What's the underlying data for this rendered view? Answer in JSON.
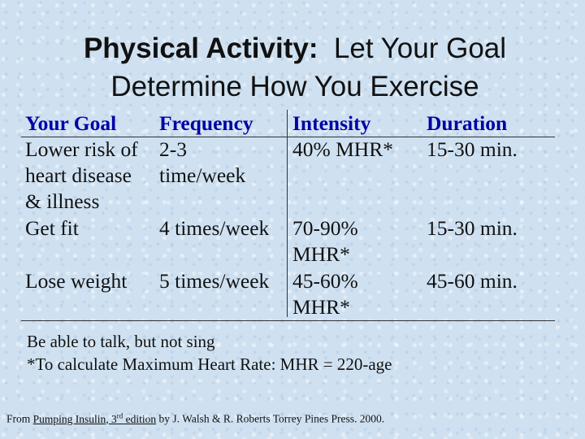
{
  "title": {
    "bold": "Physical Activity:",
    "rest": "  Let Your Goal",
    "line2": "Determine How You Exercise"
  },
  "table": {
    "headers": {
      "goal": "Your Goal",
      "frequency": "Frequency",
      "intensity": "Intensity",
      "duration": "Duration"
    },
    "rows": [
      {
        "goal": [
          "Lower risk of",
          "heart disease",
          "& illness"
        ],
        "frequency": [
          "2-3",
          "time/week"
        ],
        "intensity": [
          "40% MHR*"
        ],
        "duration": [
          "15-30 min."
        ]
      },
      {
        "goal": [
          "Get fit"
        ],
        "frequency": [
          "4 times/week"
        ],
        "intensity": [
          "70-90%",
          "MHR*"
        ],
        "duration": [
          "15-30 min."
        ]
      },
      {
        "goal": [
          "Lose weight"
        ],
        "frequency": [
          "5 times/week"
        ],
        "intensity": [
          "45-60%",
          "MHR*"
        ],
        "duration": [
          "45-60 min."
        ]
      }
    ]
  },
  "notes": {
    "line1": "Be able to talk, but not sing",
    "line2": "*To calculate Maximum Heart Rate:  MHR = 220-age"
  },
  "source": {
    "prefix": "From ",
    "book": "Pumping Insulin, 3",
    "sup": "rd",
    "edition": " edition",
    "suffix": " by J. Walsh & R. Roberts Torrey Pines Press. 2000."
  }
}
